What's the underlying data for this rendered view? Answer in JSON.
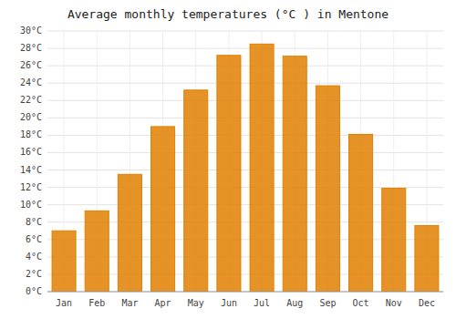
{
  "chart_data": {
    "type": "bar",
    "title": "Average monthly temperatures (°C ) in Mentone",
    "categories": [
      "Jan",
      "Feb",
      "Mar",
      "Apr",
      "May",
      "Jun",
      "Jul",
      "Aug",
      "Sep",
      "Oct",
      "Nov",
      "Dec"
    ],
    "values": [
      7.0,
      9.3,
      13.5,
      19.0,
      23.2,
      27.2,
      28.5,
      27.1,
      23.7,
      18.1,
      11.9,
      7.6
    ],
    "color": "#E08000",
    "ylim": [
      0,
      30
    ],
    "yticks": [
      {
        "value": 0,
        "label": "0°C"
      },
      {
        "value": 2,
        "label": "2°C"
      },
      {
        "value": 4,
        "label": "4°C"
      },
      {
        "value": 6,
        "label": "6°C"
      },
      {
        "value": 8,
        "label": "8°C"
      },
      {
        "value": 10,
        "label": "10°C"
      },
      {
        "value": 12,
        "label": "12°C"
      },
      {
        "value": 14,
        "label": "14°C"
      },
      {
        "value": 16,
        "label": "16°C"
      },
      {
        "value": 18,
        "label": "18°C"
      },
      {
        "value": 20,
        "label": "20°C"
      },
      {
        "value": 22,
        "label": "22°C"
      },
      {
        "value": 24,
        "label": "24°C"
      },
      {
        "value": 26,
        "label": "26°C"
      },
      {
        "value": 28,
        "label": "28°C"
      },
      {
        "value": 30,
        "label": "30°C"
      }
    ],
    "grid": true
  }
}
